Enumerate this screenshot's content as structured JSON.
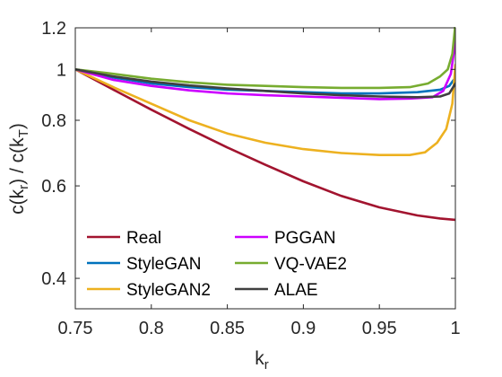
{
  "chart_data": {
    "type": "line",
    "xlabel": {
      "main": "k",
      "sub": "r"
    },
    "ylabel": {
      "p1": "c(k",
      "s1": "r",
      "p2": ") / c(k",
      "s2": "T",
      "p3": ")"
    },
    "xlim": [
      0.75,
      1.0
    ],
    "ylim": [
      0.35,
      1.2
    ],
    "y_scale": "log",
    "x_ticks": [
      0.75,
      0.8,
      0.85,
      0.9,
      0.95,
      1
    ],
    "x_tick_labels": [
      "0.75",
      "0.8",
      "0.85",
      "0.9",
      "0.95",
      "1"
    ],
    "y_ticks": [
      0.4,
      0.6,
      0.8,
      1,
      1.2
    ],
    "y_tick_labels": [
      "0.4",
      "0.6",
      "0.8",
      "1",
      "1.2"
    ],
    "grid": false,
    "legend": {
      "position": "bottom-left",
      "columns": 2
    },
    "series": [
      {
        "name": "Real",
        "color": "#A2142F",
        "points": [
          [
            0.75,
            1.0
          ],
          [
            0.775,
            0.915
          ],
          [
            0.8,
            0.838
          ],
          [
            0.825,
            0.77
          ],
          [
            0.85,
            0.71
          ],
          [
            0.875,
            0.658
          ],
          [
            0.9,
            0.612
          ],
          [
            0.925,
            0.574
          ],
          [
            0.95,
            0.546
          ],
          [
            0.975,
            0.527
          ],
          [
            0.99,
            0.52
          ],
          [
            1.0,
            0.517
          ]
        ]
      },
      {
        "name": "StyleGAN",
        "color": "#0072BD",
        "points": [
          [
            0.75,
            1.0
          ],
          [
            0.775,
            0.965
          ],
          [
            0.8,
            0.94
          ],
          [
            0.825,
            0.925
          ],
          [
            0.85,
            0.915
          ],
          [
            0.875,
            0.91
          ],
          [
            0.9,
            0.905
          ],
          [
            0.925,
            0.9
          ],
          [
            0.95,
            0.9
          ],
          [
            0.975,
            0.905
          ],
          [
            0.99,
            0.915
          ],
          [
            0.996,
            0.93
          ],
          [
            1.0,
            0.965
          ]
        ]
      },
      {
        "name": "StyleGAN2",
        "color": "#EDB120",
        "points": [
          [
            0.75,
            1.0
          ],
          [
            0.775,
            0.925
          ],
          [
            0.8,
            0.86
          ],
          [
            0.825,
            0.8
          ],
          [
            0.85,
            0.755
          ],
          [
            0.875,
            0.725
          ],
          [
            0.9,
            0.705
          ],
          [
            0.925,
            0.693
          ],
          [
            0.95,
            0.687
          ],
          [
            0.97,
            0.687
          ],
          [
            0.98,
            0.695
          ],
          [
            0.988,
            0.725
          ],
          [
            0.994,
            0.77
          ],
          [
            0.998,
            0.86
          ],
          [
            1.0,
            1.02
          ]
        ]
      },
      {
        "name": "PGGAN",
        "color": "#CC00FF",
        "points": [
          [
            0.75,
            1.0
          ],
          [
            0.775,
            0.955
          ],
          [
            0.8,
            0.93
          ],
          [
            0.825,
            0.912
          ],
          [
            0.85,
            0.9
          ],
          [
            0.875,
            0.893
          ],
          [
            0.9,
            0.888
          ],
          [
            0.925,
            0.883
          ],
          [
            0.95,
            0.878
          ],
          [
            0.97,
            0.88
          ],
          [
            0.985,
            0.885
          ],
          [
            0.992,
            0.91
          ],
          [
            0.997,
            0.98
          ],
          [
            1.0,
            1.13
          ]
        ]
      },
      {
        "name": "VQ-VAE2",
        "color": "#77AC30",
        "points": [
          [
            0.75,
            1.0
          ],
          [
            0.77,
            0.985
          ],
          [
            0.8,
            0.96
          ],
          [
            0.825,
            0.945
          ],
          [
            0.85,
            0.935
          ],
          [
            0.875,
            0.93
          ],
          [
            0.9,
            0.925
          ],
          [
            0.925,
            0.922
          ],
          [
            0.95,
            0.922
          ],
          [
            0.97,
            0.925
          ],
          [
            0.982,
            0.94
          ],
          [
            0.99,
            0.97
          ],
          [
            0.995,
            1.0
          ],
          [
            0.998,
            1.07
          ],
          [
            1.0,
            1.22
          ]
        ]
      },
      {
        "name": "ALAE",
        "color": "#404040",
        "points": [
          [
            0.75,
            1.0
          ],
          [
            0.775,
            0.97
          ],
          [
            0.8,
            0.948
          ],
          [
            0.825,
            0.932
          ],
          [
            0.85,
            0.92
          ],
          [
            0.875,
            0.91
          ],
          [
            0.9,
            0.9
          ],
          [
            0.925,
            0.893
          ],
          [
            0.95,
            0.888
          ],
          [
            0.975,
            0.885
          ],
          [
            0.99,
            0.888
          ],
          [
            0.996,
            0.9
          ],
          [
            1.0,
            0.94
          ]
        ]
      }
    ]
  }
}
